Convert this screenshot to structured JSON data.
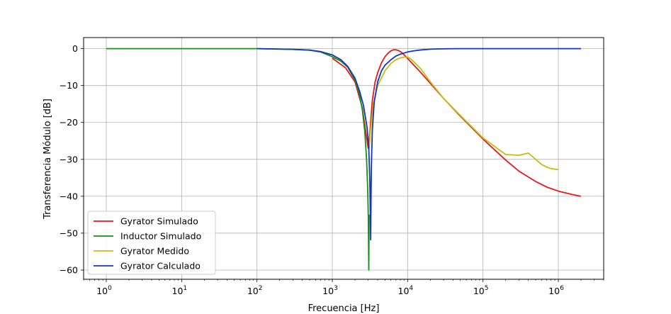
{
  "chart_data": {
    "type": "line",
    "xscale": "log",
    "xlim": [
      0.5,
      4000000
    ],
    "ylim": [
      -62.5,
      3
    ],
    "xlabel": "Frecuencia [Hz]",
    "ylabel": "Transferencia Módulo [dB]",
    "grid": true,
    "legend_position": "lower-left",
    "x_ticks": [
      {
        "value": 1,
        "base": "10",
        "exp": "0"
      },
      {
        "value": 10,
        "base": "10",
        "exp": "1"
      },
      {
        "value": 100,
        "base": "10",
        "exp": "2"
      },
      {
        "value": 1000,
        "base": "10",
        "exp": "3"
      },
      {
        "value": 10000,
        "base": "10",
        "exp": "4"
      },
      {
        "value": 100000,
        "base": "10",
        "exp": "5"
      },
      {
        "value": 1000000,
        "base": "10",
        "exp": "6"
      }
    ],
    "y_ticks": [
      {
        "value": 0,
        "label": "0"
      },
      {
        "value": -10,
        "label": "−10"
      },
      {
        "value": -20,
        "label": "−20"
      },
      {
        "value": -30,
        "label": "−30"
      },
      {
        "value": -40,
        "label": "−40"
      },
      {
        "value": -50,
        "label": "−50"
      },
      {
        "value": -60,
        "label": "−60"
      }
    ],
    "series": [
      {
        "name": "Gyrator Simulado",
        "color": "#e41a1c",
        "x": [
          1000,
          1500,
          2000,
          2500,
          2800,
          3000,
          3150,
          3250,
          3400,
          3700,
          4000,
          4500,
          5000,
          5500,
          6000,
          6500,
          7000,
          7500,
          8000,
          8500,
          9000,
          10000,
          12000,
          15000,
          20000,
          30000,
          50000,
          100000,
          200000,
          300000,
          500000,
          700000,
          1000000,
          1500000,
          2000000
        ],
        "y": [
          -2.6,
          -5.2,
          -9,
          -16,
          -23,
          -27,
          -23,
          -19,
          -14,
          -9,
          -6.5,
          -3.8,
          -2.2,
          -1.2,
          -0.6,
          -0.3,
          -0.3,
          -0.5,
          -0.8,
          -1.2,
          -1.7,
          -2.7,
          -4.4,
          -6.5,
          -9.4,
          -13.5,
          -18.3,
          -24.5,
          -30.2,
          -33.2,
          -36,
          -37.5,
          -38.6,
          -39.5,
          -40
        ]
      },
      {
        "name": "Inductor Simulado",
        "color": "#139313",
        "x": [
          1,
          10,
          100,
          300,
          500,
          700,
          1000,
          1300,
          1600,
          2000,
          2300,
          2500,
          2700,
          2850,
          2950,
          3000,
          3050,
          3080
        ],
        "y": [
          0,
          0,
          0,
          -0.2,
          -0.4,
          -0.9,
          -2.2,
          -3.4,
          -5,
          -8.5,
          -12.5,
          -16.5,
          -22.5,
          -30,
          -38,
          -45,
          -60,
          -45
        ]
      },
      {
        "name": "Gyrator Medido",
        "color": "#c8bb14",
        "x": [
          3100,
          3200,
          3300,
          3500,
          4000,
          5000,
          6000,
          7000,
          8000,
          9000,
          10000,
          11000,
          12000,
          15000,
          20000,
          30000,
          50000,
          100000,
          200000,
          300000,
          400000,
          500000,
          600000,
          700000,
          800000,
          1000000
        ],
        "y": [
          -27,
          -22.5,
          -20,
          -15,
          -10,
          -6,
          -4,
          -3,
          -2.5,
          -2.3,
          -2.3,
          -2.8,
          -3.5,
          -5.5,
          -9,
          -13.5,
          -18.1,
          -24.2,
          -28.7,
          -28.9,
          -28.3,
          -30,
          -31.4,
          -32.1,
          -32.5,
          -32.8
        ]
      },
      {
        "name": "Gyrator Calculado",
        "color": "#1536ba",
        "x": [
          100,
          300,
          500,
          700,
          1000,
          1300,
          1600,
          2000,
          2300,
          2600,
          2900,
          3050,
          3150,
          3200,
          3230,
          3260,
          3300,
          3400,
          3600,
          4000,
          4500,
          5000,
          6000,
          7000,
          8000,
          10000,
          12000,
          15000,
          20000,
          30000,
          50000,
          100000,
          1000000,
          2000000
        ],
        "y": [
          0,
          -0.2,
          -0.4,
          -0.8,
          -1.7,
          -3,
          -4.8,
          -8,
          -11.5,
          -15.5,
          -21.5,
          -27,
          -36,
          -45,
          -51.8,
          -42,
          -32,
          -22,
          -14.5,
          -9,
          -6,
          -4.5,
          -3,
          -2,
          -1.5,
          -0.9,
          -0.6,
          -0.35,
          -0.15,
          -0.05,
          0,
          0,
          0,
          0
        ]
      }
    ]
  }
}
